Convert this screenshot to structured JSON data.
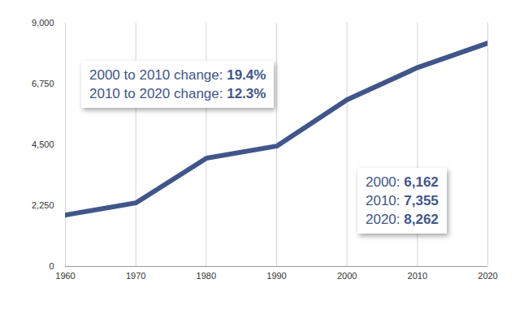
{
  "chart_data": {
    "type": "line",
    "x": [
      1960,
      1970,
      1980,
      1990,
      2000,
      2010,
      2020
    ],
    "values": [
      1900,
      2350,
      4000,
      4450,
      6162,
      7355,
      8262
    ],
    "color": "#40568a",
    "xlim": [
      1960,
      2020
    ],
    "xticks": [
      1960,
      1970,
      1980,
      1990,
      2000,
      2010,
      2020
    ],
    "ylim": [
      0,
      9000
    ],
    "yticks": [
      0,
      {
        "value": 2250,
        "label": "2,250"
      },
      {
        "value": 4500,
        "label": "4,500"
      },
      {
        "value": 6750,
        "label": "6,750"
      },
      {
        "value": 9000,
        "label": "9,000"
      }
    ],
    "grid": true,
    "annotations": [
      [
        {
          "label": "2000 to 2010 change:",
          "value": "19.4%"
        },
        {
          "label": "2010 to 2020 change:",
          "value": "12.3%"
        }
      ],
      [
        {
          "label": "2000:",
          "value": "6,162"
        },
        {
          "label": "2010:",
          "value": "7,355"
        },
        {
          "label": "2020:",
          "value": "8,262"
        }
      ]
    ]
  }
}
